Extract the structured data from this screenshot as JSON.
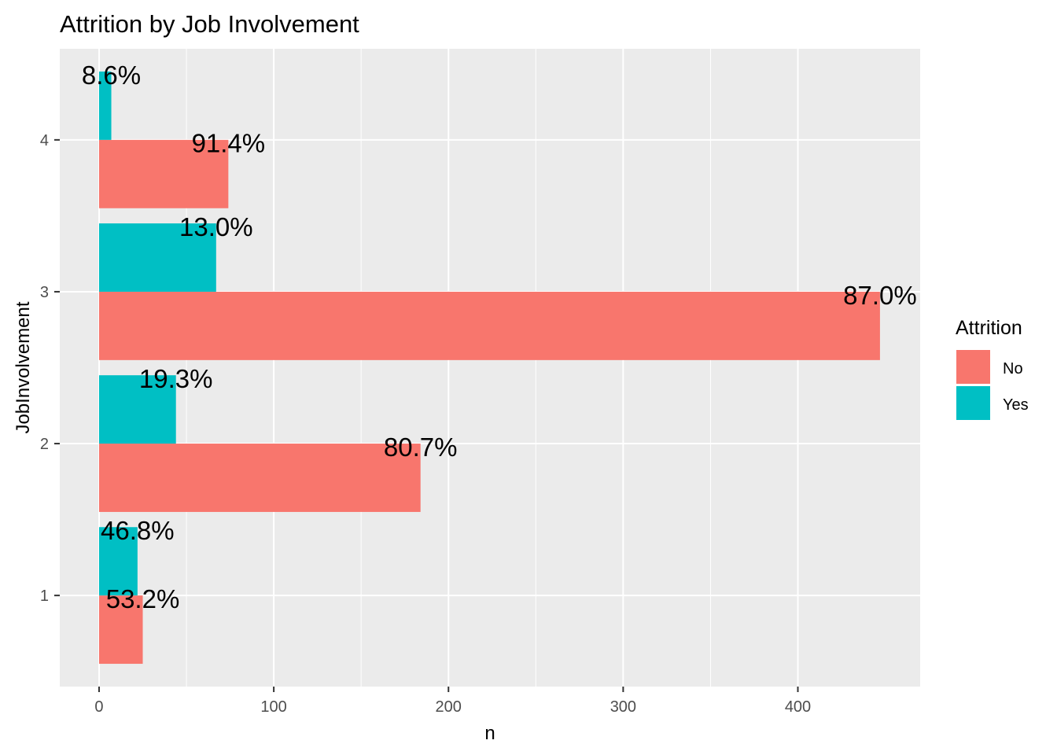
{
  "chart_data": {
    "type": "bar",
    "orientation": "horizontal",
    "title": "Attrition by Job Involvement",
    "xlabel": "n",
    "ylabel": "JobInvolvement",
    "xlim": [
      -22.5,
      470
    ],
    "x_ticks": [
      0,
      100,
      200,
      300,
      400
    ],
    "categories": [
      "1",
      "2",
      "3",
      "4"
    ],
    "series": [
      {
        "name": "No",
        "color": "#F8766D",
        "values": [
          25,
          184,
          447,
          74
        ],
        "labels": [
          "53.2%",
          "80.7%",
          "87.0%",
          "91.4%"
        ]
      },
      {
        "name": "Yes",
        "color": "#00BFC4",
        "values": [
          22,
          44,
          67,
          7
        ],
        "labels": [
          "46.8%",
          "19.3%",
          "13.0%",
          "8.6%"
        ]
      }
    ],
    "legend": {
      "title": "Attrition",
      "position": "right"
    },
    "grid": true,
    "panel_background": "#EBEBEB",
    "grid_color": "#FFFFFF"
  }
}
